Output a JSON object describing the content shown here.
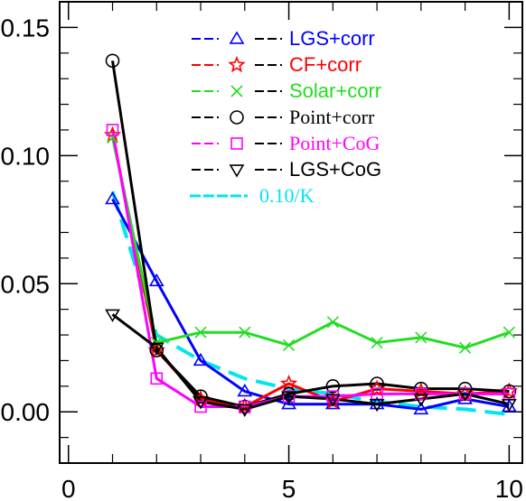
{
  "chart_data": {
    "type": "line",
    "title": "",
    "xlabel": "",
    "ylabel": "",
    "xlim": [
      -0.2,
      10.3
    ],
    "ylim": [
      -0.02,
      0.16
    ],
    "x_ticks": [
      0,
      5,
      10
    ],
    "x_tick_labels": [
      "0",
      "5",
      "10"
    ],
    "y_ticks": [
      0.0,
      0.05,
      0.1,
      0.15
    ],
    "y_tick_labels": [
      "0.00",
      "0.05",
      "0.10",
      "0.15"
    ],
    "grid": false,
    "legend_position": "top-right",
    "series": [
      {
        "name": "LGS+corr",
        "color": "#0000ff",
        "marker": "triangle",
        "x": [
          1,
          2,
          3,
          4,
          5,
          6,
          7,
          8,
          9,
          10
        ],
        "values": [
          0.083,
          0.051,
          0.02,
          0.008,
          0.003,
          0.003,
          0.003,
          0.001,
          0.005,
          0.002
        ]
      },
      {
        "name": "CF+corr",
        "color": "#ff0000",
        "marker": "star",
        "x": [
          1,
          2,
          3,
          4,
          5,
          6,
          7,
          8,
          9,
          10
        ],
        "values": [
          0.108,
          0.024,
          0.005,
          0.002,
          0.011,
          0.004,
          0.009,
          0.008,
          0.007,
          0.008
        ]
      },
      {
        "name": "Solar+corr",
        "color": "#22dd22",
        "marker": "x",
        "x": [
          1,
          2,
          3,
          4,
          5,
          6,
          7,
          8,
          9,
          10
        ],
        "values": [
          0.107,
          0.027,
          0.031,
          0.031,
          0.026,
          0.035,
          0.027,
          0.029,
          0.025,
          0.031
        ]
      },
      {
        "name": "Point+corr",
        "color": "#000000",
        "marker": "circle",
        "x": [
          1,
          2,
          3,
          4,
          5,
          6,
          7,
          8,
          9,
          10
        ],
        "values": [
          0.137,
          0.024,
          0.006,
          0.002,
          0.007,
          0.01,
          0.011,
          0.009,
          0.009,
          0.008
        ]
      },
      {
        "name": "Point+CoG",
        "color": "#ff00ff",
        "marker": "square",
        "x": [
          1,
          2,
          3,
          4,
          5,
          6,
          7,
          8,
          9,
          10
        ],
        "values": [
          0.11,
          0.013,
          0.002,
          0.002,
          0.006,
          0.006,
          0.007,
          0.007,
          0.007,
          0.007
        ]
      },
      {
        "name": "LGS+CoG",
        "color": "#000000",
        "marker": "triangle-down",
        "x": [
          1,
          2,
          3,
          4,
          5,
          6,
          7,
          8,
          9,
          10
        ],
        "values": [
          0.038,
          0.025,
          0.004,
          0.001,
          0.006,
          0.005,
          0.003,
          0.005,
          0.007,
          0.003
        ]
      },
      {
        "name": "0.10/K",
        "color": "#00e5ee",
        "marker": "none",
        "dashed_thick": true,
        "x": [
          1,
          2,
          3,
          4,
          5,
          6,
          7,
          8,
          9,
          10
        ],
        "values": [
          0.086,
          0.03,
          0.02,
          0.013,
          0.009,
          0.007,
          0.004,
          0.002,
          0.001,
          -0.001
        ]
      }
    ]
  }
}
